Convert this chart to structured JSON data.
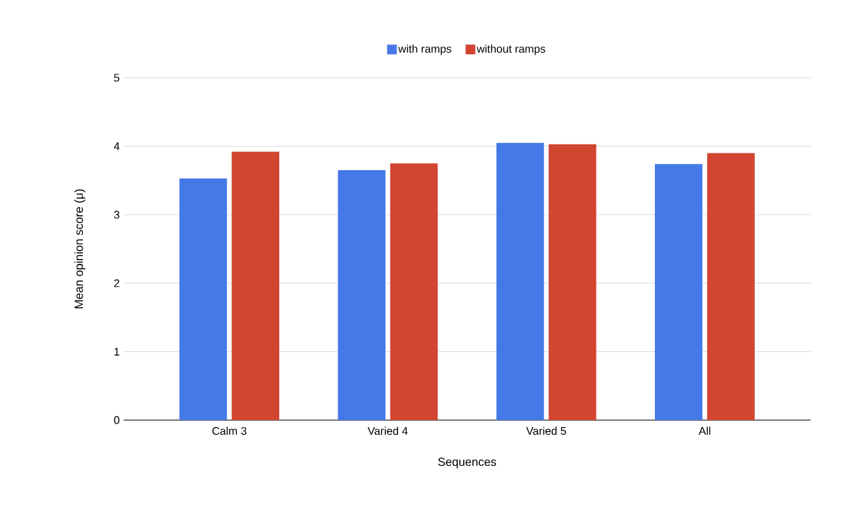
{
  "chart_data": {
    "type": "bar",
    "xlabel": "Sequences",
    "ylabel": "Mean opinion score (μ)",
    "categories": [
      "Calm 3",
      "Varied 4",
      "Varied 5",
      "All"
    ],
    "series": [
      {
        "name": "with ramps",
        "color": "#4679e8",
        "values": [
          3.53,
          3.65,
          4.05,
          3.74
        ]
      },
      {
        "name": "without ramps",
        "color": "#d24530",
        "values": [
          3.92,
          3.75,
          4.03,
          3.9
        ]
      }
    ],
    "ylim": [
      0,
      5
    ],
    "yticks": [
      0,
      1,
      2,
      3,
      4,
      5
    ],
    "grid": "y",
    "legend": "top"
  }
}
